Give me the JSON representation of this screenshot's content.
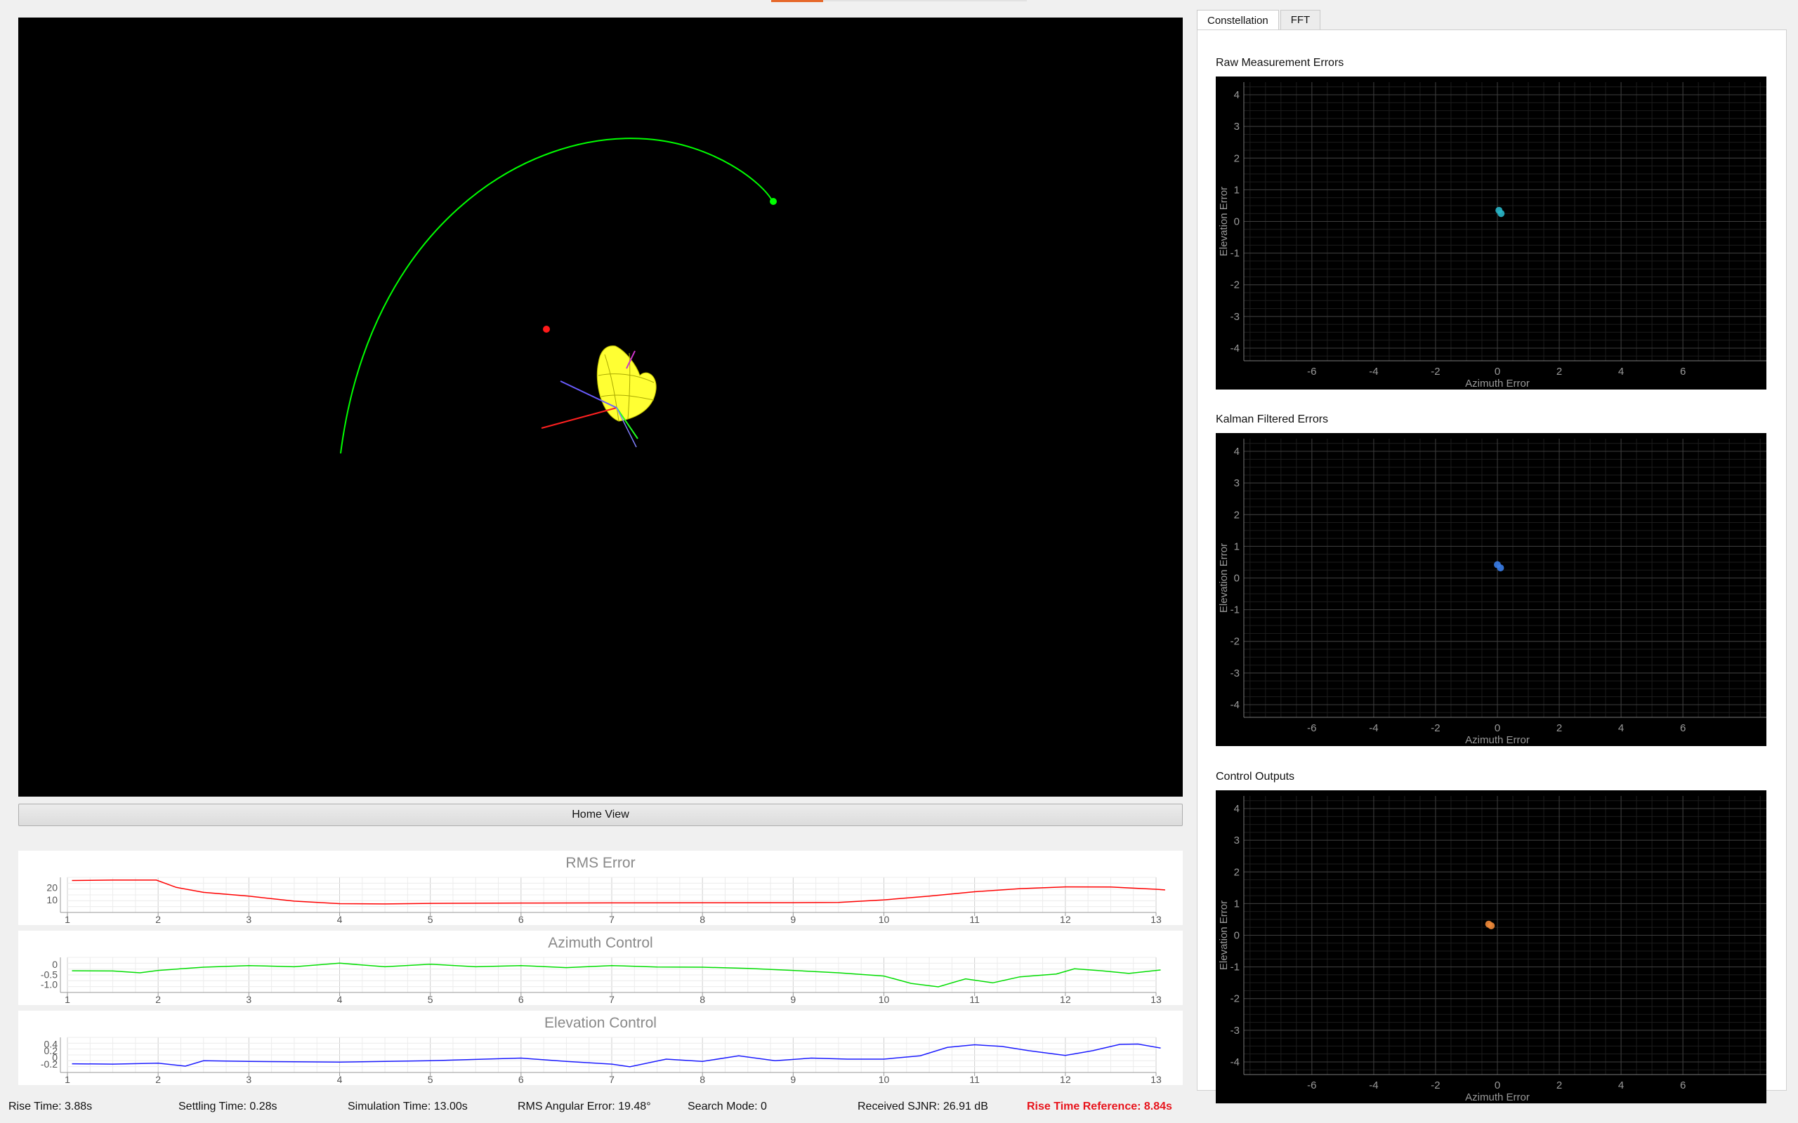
{
  "viewport": {
    "home_view_label": "Home View"
  },
  "strips": [
    {
      "title": "RMS Error",
      "color": "#ff0000",
      "x_ticks": [
        "1",
        "2",
        "3",
        "4",
        "5",
        "6",
        "7",
        "8",
        "9",
        "10",
        "11",
        "12",
        "13"
      ],
      "y_ticks": [
        "20",
        "10"
      ],
      "y_tick_values": [
        20,
        10
      ],
      "ylim": [
        0,
        28
      ],
      "points": [
        [
          1.05,
          25.5
        ],
        [
          1.5,
          25.8
        ],
        [
          1.98,
          25.8
        ],
        [
          2.2,
          20
        ],
        [
          2.5,
          16
        ],
        [
          3,
          13
        ],
        [
          3.5,
          9
        ],
        [
          4,
          7
        ],
        [
          4.5,
          6.8
        ],
        [
          5,
          7.2
        ],
        [
          6,
          7.5
        ],
        [
          7,
          7.6
        ],
        [
          8,
          7.7
        ],
        [
          9,
          7.8
        ],
        [
          9.5,
          8
        ],
        [
          10,
          10
        ],
        [
          10.5,
          13
        ],
        [
          11,
          16.5
        ],
        [
          11.5,
          19
        ],
        [
          12,
          20.4
        ],
        [
          12.5,
          20.3
        ],
        [
          13,
          18.5
        ],
        [
          13.1,
          18
        ]
      ]
    },
    {
      "title": "Azimuth Control",
      "color": "#00dd00",
      "x_ticks": [
        "1",
        "2",
        "3",
        "4",
        "5",
        "6",
        "7",
        "8",
        "9",
        "10",
        "11",
        "12",
        "13"
      ],
      "y_ticks": [
        "0",
        "-0.5",
        "-1.0"
      ],
      "y_tick_values": [
        0,
        -0.5,
        -1.0
      ],
      "ylim": [
        -1.4,
        0.35
      ],
      "points": [
        [
          1.05,
          -0.32
        ],
        [
          1.5,
          -0.33
        ],
        [
          1.8,
          -0.42
        ],
        [
          2,
          -0.3
        ],
        [
          2.5,
          -0.14
        ],
        [
          3,
          -0.06
        ],
        [
          3.5,
          -0.12
        ],
        [
          4,
          0.06
        ],
        [
          4.5,
          -0.12
        ],
        [
          5,
          0.01
        ],
        [
          5.5,
          -0.12
        ],
        [
          6,
          -0.06
        ],
        [
          6.5,
          -0.16
        ],
        [
          7,
          -0.06
        ],
        [
          7.5,
          -0.13
        ],
        [
          8,
          -0.14
        ],
        [
          8.5,
          -0.2
        ],
        [
          9,
          -0.3
        ],
        [
          9.5,
          -0.42
        ],
        [
          10,
          -0.58
        ],
        [
          10.3,
          -0.95
        ],
        [
          10.6,
          -1.12
        ],
        [
          10.9,
          -0.72
        ],
        [
          11.2,
          -0.92
        ],
        [
          11.5,
          -0.62
        ],
        [
          11.9,
          -0.48
        ],
        [
          12.1,
          -0.22
        ],
        [
          12.4,
          -0.32
        ],
        [
          12.7,
          -0.45
        ],
        [
          13.05,
          -0.28
        ]
      ]
    },
    {
      "title": "Elevation Control",
      "color": "#1a1aff",
      "x_ticks": [
        "1",
        "2",
        "3",
        "4",
        "5",
        "6",
        "7",
        "8",
        "9",
        "10",
        "11",
        "12",
        "13"
      ],
      "y_ticks": [
        "0.4",
        "0.2",
        "0",
        "-0.2"
      ],
      "y_tick_values": [
        0.4,
        0.2,
        0,
        -0.2
      ],
      "ylim": [
        -0.45,
        0.6
      ],
      "points": [
        [
          1.05,
          -0.19
        ],
        [
          1.5,
          -0.2
        ],
        [
          2,
          -0.17
        ],
        [
          2.3,
          -0.26
        ],
        [
          2.5,
          -0.1
        ],
        [
          3,
          -0.12
        ],
        [
          3.5,
          -0.13
        ],
        [
          4,
          -0.14
        ],
        [
          4.5,
          -0.12
        ],
        [
          5,
          -0.1
        ],
        [
          5.5,
          -0.06
        ],
        [
          6,
          -0.02
        ],
        [
          6.5,
          -0.12
        ],
        [
          7,
          -0.2
        ],
        [
          7.2,
          -0.28
        ],
        [
          7.6,
          -0.05
        ],
        [
          8,
          -0.12
        ],
        [
          8.4,
          0.05
        ],
        [
          8.8,
          -0.1
        ],
        [
          9.2,
          -0.02
        ],
        [
          9.6,
          -0.05
        ],
        [
          10,
          -0.05
        ],
        [
          10.4,
          0.05
        ],
        [
          10.7,
          0.3
        ],
        [
          11,
          0.38
        ],
        [
          11.3,
          0.33
        ],
        [
          11.6,
          0.2
        ],
        [
          12,
          0.06
        ],
        [
          12.3,
          0.2
        ],
        [
          12.6,
          0.39
        ],
        [
          12.8,
          0.4
        ],
        [
          13.05,
          0.28
        ]
      ]
    }
  ],
  "right_panel": {
    "tabs": [
      {
        "label": "Constellation",
        "active": true
      },
      {
        "label": "FFT",
        "active": false
      }
    ],
    "plots": [
      {
        "title": "Raw Measurement Errors",
        "xlabel": "Azimuth Error",
        "ylabel": "Elevation Error",
        "point_color": "#29b6c8",
        "points": [
          [
            0.05,
            0.35
          ],
          [
            0.12,
            0.25
          ]
        ]
      },
      {
        "title": "Kalman Filtered Errors",
        "xlabel": "Azimuth Error",
        "ylabel": "Elevation Error",
        "point_color": "#3a7de8",
        "points": [
          [
            0.0,
            0.42
          ],
          [
            0.1,
            0.32
          ]
        ]
      },
      {
        "title": "Control Outputs",
        "xlabel": "Azimuth Error",
        "ylabel": "Elevation Error",
        "point_color": "#ee8a3a",
        "points": [
          [
            -0.28,
            0.35
          ],
          [
            -0.2,
            0.3
          ]
        ]
      }
    ],
    "x_ticks": [
      "-6",
      "-4",
      "-2",
      "0",
      "2",
      "4",
      "6"
    ],
    "y_ticks": [
      "4",
      "3",
      "2",
      "1",
      "0",
      "-1",
      "-2",
      "-3",
      "-4"
    ],
    "xlim": [
      -8.2,
      8.7
    ],
    "ylim": [
      -4.4,
      4.4
    ]
  },
  "status_bar": {
    "rise_time": "Rise Time: 3.88s",
    "settling_time": "Settling Time: 0.28s",
    "simulation_time": "Simulation Time: 13.00s",
    "rms_angular_error": "RMS Angular Error: 19.48°",
    "search_mode": "Search Mode: 0",
    "received_sjnr": "Received SJNR: 26.91 dB",
    "rise_time_reference": "Rise Time Reference: 8.84s"
  },
  "colors": {
    "trajectory": "#00ff00",
    "target": "#ff1a1a",
    "beam": "#ffff33",
    "rise_time_reference": "#e8141c"
  }
}
